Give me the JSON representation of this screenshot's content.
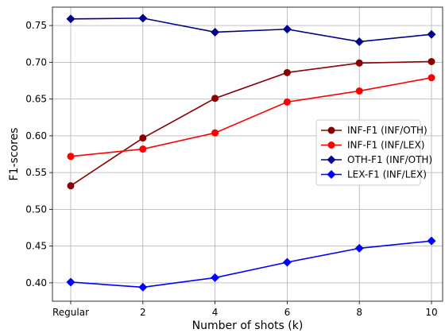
{
  "chart_data": {
    "type": "line",
    "title": "",
    "xlabel": "Number of shots (k)",
    "ylabel": "F1-scores",
    "categories": [
      "Regular",
      "2",
      "4",
      "6",
      "8",
      "10"
    ],
    "ylim": [
      0.375,
      0.775
    ],
    "yticks": [
      "0.40",
      "0.45",
      "0.50",
      "0.55",
      "0.60",
      "0.65",
      "0.70",
      "0.75"
    ],
    "grid": true,
    "legend_position": "center-right",
    "series": [
      {
        "name": "INF-F1 (INF/OTH)",
        "color": "#8b0000",
        "marker": "circle",
        "values": [
          0.532,
          0.597,
          0.651,
          0.686,
          0.699,
          0.701
        ]
      },
      {
        "name": "INF-F1 (INF/LEX)",
        "color": "#ff0000",
        "marker": "circle",
        "values": [
          0.572,
          0.582,
          0.604,
          0.646,
          0.661,
          0.679
        ]
      },
      {
        "name": "OTH-F1 (INF/OTH)",
        "color": "#00008b",
        "marker": "diamond",
        "values": [
          0.759,
          0.76,
          0.741,
          0.745,
          0.728,
          0.738
        ]
      },
      {
        "name": "LEX-F1 (INF/LEX)",
        "color": "#0000ff",
        "marker": "diamond",
        "values": [
          0.401,
          0.394,
          0.407,
          0.428,
          0.447,
          0.457
        ]
      }
    ]
  }
}
